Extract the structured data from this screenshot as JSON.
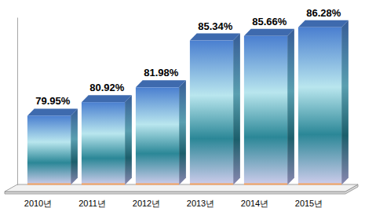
{
  "chart_data": {
    "type": "bar",
    "categories": [
      "2010년",
      "2011년",
      "2012년",
      "2013년",
      "2014년",
      "2015년"
    ],
    "values": [
      79.95,
      80.92,
      81.98,
      85.34,
      85.66,
      86.28
    ],
    "value_labels": [
      "79.95%",
      "80.92%",
      "81.98%",
      "85.34%",
      "85.66%",
      "86.28%"
    ],
    "data_labels": true,
    "color": "#4a7fd0",
    "ylim": [
      75,
      87
    ],
    "tick_labels": "x"
  }
}
